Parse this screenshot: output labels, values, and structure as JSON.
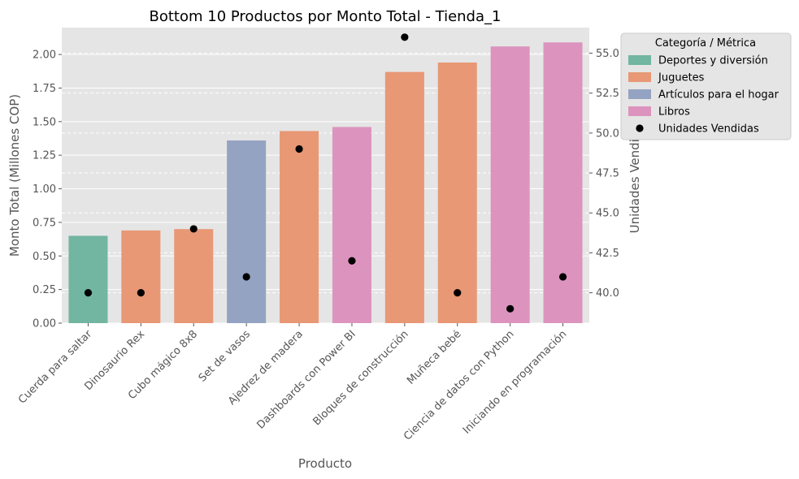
{
  "chart_data": {
    "type": "bar",
    "title": "Bottom 10 Productos por Monto Total - Tienda_1",
    "xlabel": "Producto",
    "ylabel": "Monto Total (Millones COP)",
    "y2label": "Unidades Vendidas",
    "ylim": [
      0,
      2.2
    ],
    "y2lim": [
      38.1,
      56.6
    ],
    "yticks": [
      "0.00",
      "0.25",
      "0.50",
      "0.75",
      "1.00",
      "1.25",
      "1.50",
      "1.75",
      "2.00"
    ],
    "y2ticks": [
      "40.0",
      "42.5",
      "45.0",
      "47.5",
      "50.0",
      "52.5",
      "55.0"
    ],
    "grid": true,
    "categories": [
      "Cuerda para saltar",
      "Dinosaurio Rex",
      "Cubo mágico 8x8",
      "Set de vasos",
      "Ajedrez de madera",
      "Dashboards con Power BI",
      "Bloques de construcción",
      "Muñeca bebé",
      "Ciencia de datos con Python",
      "Iniciando en programación"
    ],
    "bar_categories": [
      "Deportes y diversión",
      "Juguetes",
      "Juguetes",
      "Artículos para el hogar",
      "Juguetes",
      "Libros",
      "Juguetes",
      "Juguetes",
      "Libros",
      "Libros"
    ],
    "values": [
      0.65,
      0.69,
      0.7,
      1.36,
      1.43,
      1.46,
      1.87,
      1.94,
      2.06,
      2.09
    ],
    "units_sold": [
      40,
      40,
      44,
      41,
      49,
      42,
      56,
      40,
      39,
      41
    ],
    "legend": {
      "title": "Categoría / Métrica",
      "placement": "outside top-right",
      "entries": [
        {
          "label": "Deportes y diversión",
          "color": "#72b5a0",
          "kind": "bar"
        },
        {
          "label": "Juguetes",
          "color": "#e89875",
          "kind": "bar"
        },
        {
          "label": "Artículos para el hogar",
          "color": "#95a3c2",
          "kind": "bar"
        },
        {
          "label": "Libros",
          "color": "#dc94be",
          "kind": "bar"
        },
        {
          "label": "Unidades Vendidas",
          "color": "#000000",
          "kind": "point"
        }
      ]
    },
    "colors": {
      "Deportes y diversión": "#72b5a0",
      "Juguetes": "#e89875",
      "Artículos para el hogar": "#95a3c2",
      "Libros": "#dc94be",
      "plot_background": "#e5e5e5",
      "grid": "#ffffff",
      "points": "#000000"
    }
  }
}
